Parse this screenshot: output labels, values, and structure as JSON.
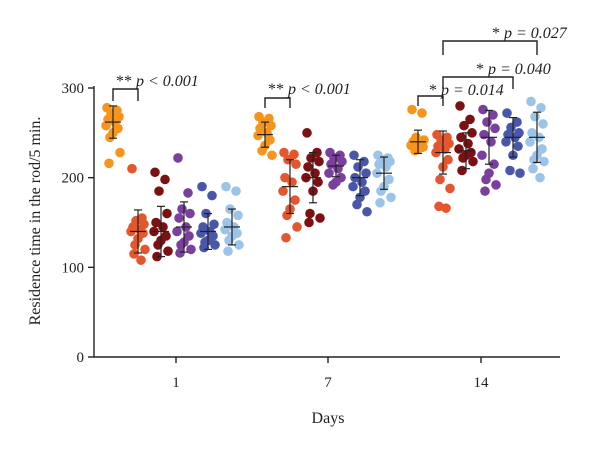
{
  "chart_data": {
    "type": "scatter",
    "subtype": "dot-plot-with-mean-sd",
    "xlabel": "Days",
    "ylabel": "Residence time in the rod/5 min.",
    "ylim": [
      0,
      300
    ],
    "yticks": [
      0,
      100,
      200,
      300
    ],
    "categories": [
      "1",
      "7",
      "14"
    ],
    "grid": false,
    "legend": "none",
    "series": [
      {
        "color": "#F7941D",
        "groups": [
          {
            "values": [
              278,
              275,
              272,
              268,
              265,
              262,
              258,
              255,
              250,
              245,
              228,
              216
            ],
            "mean": 262,
            "sd": 18
          },
          {
            "values": [
              268,
              266,
              262,
              258,
              255,
              250,
              247,
              242,
              236,
              230,
              225
            ],
            "mean": 248,
            "sd": 14
          },
          {
            "values": [
              276,
              272,
              245,
              242,
              240,
              238,
              236,
              234,
              232,
              230
            ],
            "mean": 240,
            "sd": 13
          }
        ]
      },
      {
        "color": "#E4572E",
        "groups": [
          {
            "values": [
              210,
              155,
              152,
              148,
              145,
              142,
              140,
              138,
              132,
              125,
              120,
              115,
              108
            ],
            "mean": 140,
            "sd": 24
          },
          {
            "values": [
              228,
              226,
              220,
              215,
              200,
              195,
              185,
              175,
              165,
              158,
              145,
              133
            ],
            "mean": 190,
            "sd": 30
          },
          {
            "values": [
              248,
              245,
              242,
              238,
              235,
              232,
              228,
              220,
              212,
              198,
              188,
              168,
              166
            ],
            "mean": 228,
            "sd": 24
          }
        ]
      },
      {
        "color": "#7B1113",
        "groups": [
          {
            "values": [
              206,
              198,
              185,
              160,
              150,
              145,
              140,
              135,
              130,
              125,
              118,
              112
            ],
            "mean": 140,
            "sd": 28
          },
          {
            "values": [
              250,
              228,
              222,
              218,
              212,
              205,
              200,
              195,
              185,
              160,
              155,
              150
            ],
            "mean": 200,
            "sd": 28
          },
          {
            "values": [
              280,
              265,
              258,
              250,
              245,
              238,
              232,
              228,
              225,
              222,
              218,
              208
            ],
            "mean": 230,
            "sd": 20
          }
        ]
      },
      {
        "color": "#7B3F9E",
        "groups": [
          {
            "values": [
              222,
              183,
              165,
              160,
              155,
              145,
              140,
              135,
              128,
              125,
              120,
              116
            ],
            "mean": 145,
            "sd": 28
          },
          {
            "values": [
              228,
              225,
              222,
              218,
              215,
              210,
              205,
              200,
              195,
              192
            ],
            "mean": 213,
            "sd": 12
          },
          {
            "values": [
              276,
              270,
              262,
              255,
              248,
              240,
              225,
              215,
              205,
              198,
              192,
              185
            ],
            "mean": 245,
            "sd": 30
          }
        ]
      },
      {
        "color": "#4A57A8",
        "groups": [
          {
            "values": [
              190,
              180,
              160,
              148,
              145,
              140,
              138,
              135,
              130,
              128,
              125,
              122
            ],
            "mean": 140,
            "sd": 20
          },
          {
            "values": [
              225,
              218,
              212,
              205,
              200,
              195,
              190,
              185,
              178,
              170,
              162
            ],
            "mean": 200,
            "sd": 20
          },
          {
            "values": [
              272,
              262,
              256,
              250,
              248,
              245,
              240,
              235,
              225,
              208,
              205
            ],
            "mean": 245,
            "sd": 22
          }
        ]
      },
      {
        "color": "#9BC4E8",
        "groups": [
          {
            "values": [
              190,
              185,
              165,
              158,
              150,
              145,
              142,
              138,
              135,
              130,
              125,
              118
            ],
            "mean": 145,
            "sd": 20
          },
          {
            "values": [
              225,
              222,
              220,
              218,
              215,
              212,
              205,
              198,
              190,
              185,
              178,
              172
            ],
            "mean": 205,
            "sd": 18
          },
          {
            "values": [
              285,
              278,
              268,
              260,
              250,
              245,
              240,
              232,
              225,
              220,
              218,
              210,
              200
            ],
            "mean": 245,
            "sd": 28
          }
        ]
      }
    ],
    "annotations": [
      {
        "stars": "**",
        "text": "p < 0.001",
        "from_series": 0,
        "to_series": 1,
        "category": "1"
      },
      {
        "stars": "**",
        "text": "p < 0.001",
        "from_series": 0,
        "to_series": 1,
        "category": "7"
      },
      {
        "stars": "*",
        "text": "p = 0.014",
        "from_series": 0,
        "to_series": 1,
        "category": "14"
      },
      {
        "stars": "*",
        "text": "p = 0.040",
        "from_series": 1,
        "to_series": 4,
        "category": "14"
      },
      {
        "stars": "*",
        "text": "p = 0.027",
        "from_series": 1,
        "to_series": 5,
        "category": "14"
      }
    ]
  }
}
